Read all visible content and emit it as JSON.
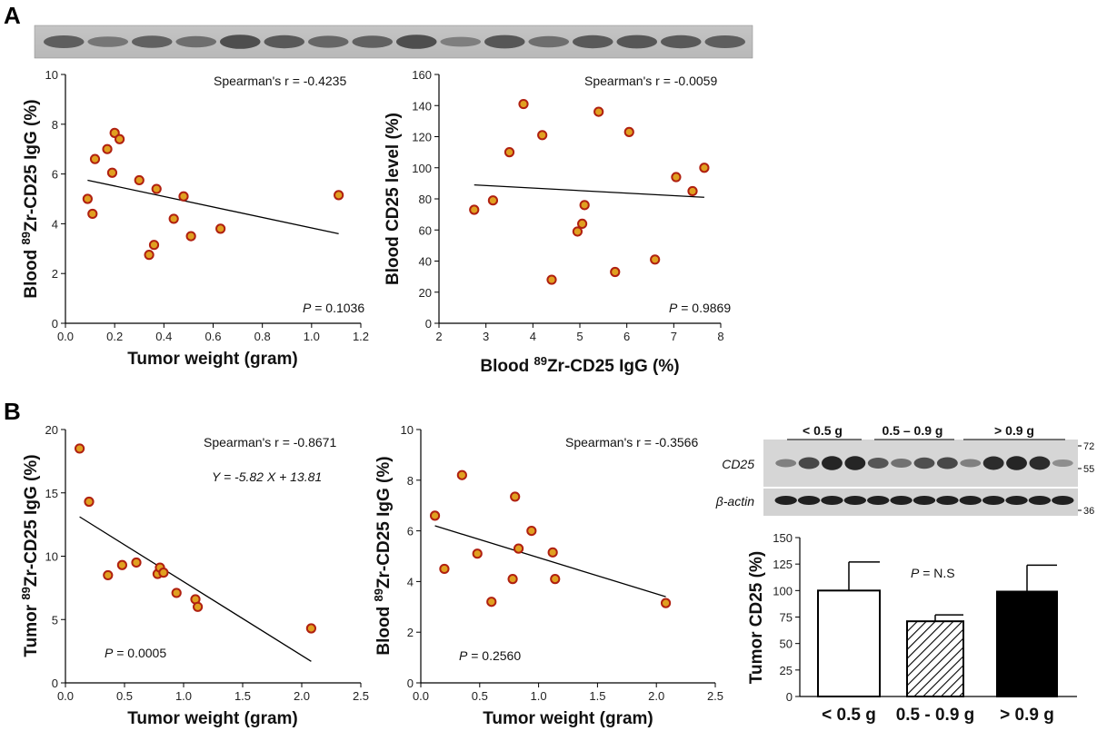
{
  "panels": {
    "a": "A",
    "b": "B"
  },
  "colors": {
    "point_fill": "#e0a020",
    "point_stroke": "#b02010",
    "line": "#000000",
    "bar_open": "#ffffff",
    "bar_filled": "#000000"
  },
  "chart_data": [
    {
      "id": "A1",
      "type": "scatter",
      "xlabel": "Tumor weight (gram)",
      "ylabel": "Blood <sup>89</sup>Zr-CD25 IgG (%)",
      "xlim": [
        0,
        1.2
      ],
      "ylim": [
        0,
        10
      ],
      "xticks": [
        "0.0",
        "0.2",
        "0.4",
        "0.6",
        "0.8",
        "1.0",
        "1.2"
      ],
      "yticks": [
        "0",
        "2",
        "4",
        "6",
        "8",
        "10"
      ],
      "points": [
        [
          0.09,
          5.0
        ],
        [
          0.11,
          4.4
        ],
        [
          0.12,
          6.6
        ],
        [
          0.17,
          7.0
        ],
        [
          0.19,
          6.05
        ],
        [
          0.2,
          7.65
        ],
        [
          0.22,
          7.4
        ],
        [
          0.3,
          5.75
        ],
        [
          0.34,
          2.75
        ],
        [
          0.36,
          3.15
        ],
        [
          0.37,
          5.4
        ],
        [
          0.44,
          4.2
        ],
        [
          0.48,
          5.1
        ],
        [
          0.51,
          3.5
        ],
        [
          0.63,
          3.8
        ],
        [
          1.11,
          5.15
        ]
      ],
      "fit": {
        "x0": 0.09,
        "y0": 5.75,
        "x1": 1.11,
        "y1": 3.6
      },
      "spearman": "Spearman's r = -0.4235",
      "p_value": "= 0.1036"
    },
    {
      "id": "A2",
      "type": "scatter",
      "xlabel": "Blood <sup>89</sup>Zr-CD25 IgG (%)",
      "ylabel": "Blood CD25 level (%)",
      "xlim": [
        2,
        8
      ],
      "ylim": [
        0,
        160
      ],
      "xticks": [
        "2",
        "3",
        "4",
        "5",
        "6",
        "7",
        "8"
      ],
      "yticks": [
        "0",
        "20",
        "40",
        "60",
        "80",
        "100",
        "120",
        "140",
        "160"
      ],
      "points": [
        [
          2.75,
          73
        ],
        [
          3.15,
          79
        ],
        [
          3.5,
          110
        ],
        [
          3.8,
          141
        ],
        [
          4.2,
          121
        ],
        [
          4.4,
          28
        ],
        [
          4.95,
          59
        ],
        [
          5.05,
          64
        ],
        [
          5.1,
          76
        ],
        [
          5.4,
          136
        ],
        [
          5.75,
          33
        ],
        [
          6.05,
          123
        ],
        [
          6.6,
          41
        ],
        [
          7.05,
          94
        ],
        [
          7.4,
          85
        ],
        [
          7.65,
          100
        ]
      ],
      "fit": {
        "x0": 2.75,
        "y0": 89,
        "x1": 7.65,
        "y1": 81
      },
      "spearman": "Spearman's r = -0.0059",
      "p_value": "= 0.9869"
    },
    {
      "id": "B1",
      "type": "scatter",
      "xlabel": "Tumor weight (gram)",
      "ylabel": "Tumor <sup>89</sup>Zr-CD25 IgG (%)",
      "xlim": [
        0,
        2.5
      ],
      "ylim": [
        0,
        20
      ],
      "xticks": [
        "0.0",
        "0.5",
        "1.0",
        "1.5",
        "2.0",
        "2.5"
      ],
      "yticks": [
        "0",
        "5",
        "10",
        "15",
        "20"
      ],
      "points": [
        [
          0.12,
          18.5
        ],
        [
          0.2,
          14.3
        ],
        [
          0.36,
          8.5
        ],
        [
          0.48,
          9.3
        ],
        [
          0.6,
          9.5
        ],
        [
          0.78,
          8.6
        ],
        [
          0.8,
          9.1
        ],
        [
          0.83,
          8.7
        ],
        [
          0.94,
          7.1
        ],
        [
          1.1,
          6.6
        ],
        [
          1.12,
          6.0
        ],
        [
          2.08,
          4.3
        ]
      ],
      "fit": {
        "x0": 0.12,
        "y0": 13.11,
        "x1": 2.08,
        "y1": 1.7
      },
      "spearman": "Spearman's r = -0.8671",
      "equation": "Y = -5.82 X + 13.81",
      "p_value": "= 0.0005"
    },
    {
      "id": "B2",
      "type": "scatter",
      "xlabel": "Tumor weight (gram)",
      "ylabel": "Blood <sup>89</sup>Zr-CD25 IgG (%)",
      "xlim": [
        0,
        2.5
      ],
      "ylim": [
        0,
        10
      ],
      "xticks": [
        "0.0",
        "0.5",
        "1.0",
        "1.5",
        "2.0",
        "2.5"
      ],
      "yticks": [
        "0",
        "2",
        "4",
        "6",
        "8",
        "10"
      ],
      "points": [
        [
          0.12,
          6.6
        ],
        [
          0.2,
          4.5
        ],
        [
          0.35,
          8.2
        ],
        [
          0.48,
          5.1
        ],
        [
          0.6,
          3.2
        ],
        [
          0.78,
          4.1
        ],
        [
          0.8,
          7.35
        ],
        [
          0.83,
          5.3
        ],
        [
          0.94,
          6.0
        ],
        [
          1.12,
          5.15
        ],
        [
          1.14,
          4.1
        ],
        [
          2.08,
          3.15
        ]
      ],
      "fit": {
        "x0": 0.12,
        "y0": 6.2,
        "x1": 2.08,
        "y1": 3.4
      },
      "spearman": "Spearman's r = -0.3566",
      "p_value": "= 0.2560"
    },
    {
      "id": "B3",
      "type": "bar",
      "ylabel": "Tumor CD25 (%)",
      "categories": [
        "< 0.5 g",
        "0.5 - 0.9 g",
        "> 0.9 g"
      ],
      "values": [
        100,
        71,
        99
      ],
      "errors": [
        27,
        6,
        25
      ],
      "styles": [
        "open",
        "hatched",
        "filled"
      ],
      "ylim": [
        0,
        150
      ],
      "yticks": [
        "0",
        "25",
        "50",
        "75",
        "100",
        "125",
        "150"
      ],
      "p_value": "= N.S"
    }
  ],
  "blot_top": {
    "bands": 16
  },
  "blot_b": {
    "groups": [
      "< 0.5 g",
      "0.5 – 0.9 g",
      "> 0.9 g"
    ],
    "rows": [
      "CD25",
      "β-actin"
    ],
    "markers": [
      "72",
      "55",
      "36"
    ]
  },
  "p_symbol": "P"
}
